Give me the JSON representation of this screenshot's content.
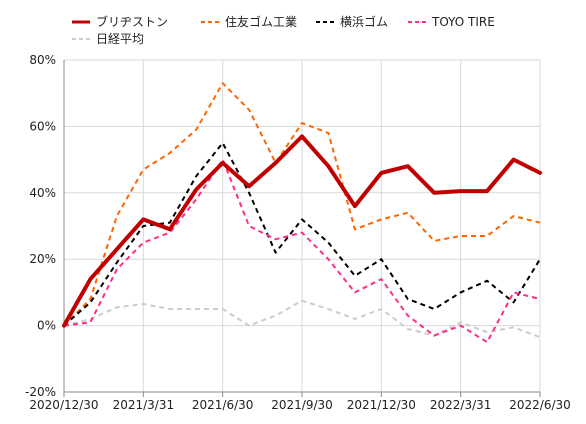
{
  "chart_data": {
    "type": "line",
    "title": "",
    "xlabel": "",
    "ylabel": "",
    "y_unit": "%",
    "ylim": [
      -20,
      80
    ],
    "yticks": [
      -20,
      0,
      20,
      40,
      60,
      80
    ],
    "ytick_labels": [
      "-20%",
      "0%",
      "20%",
      "40%",
      "60%",
      "80%"
    ],
    "xlim": [
      0,
      18
    ],
    "x": [
      0,
      1,
      2,
      3,
      4,
      5,
      6,
      7,
      8,
      9,
      10,
      11,
      12,
      13,
      14,
      15,
      16,
      17,
      18
    ],
    "xtick_positions": [
      0,
      3,
      6,
      9,
      12,
      15,
      18
    ],
    "xtick_labels": [
      "2020/12/30",
      "2021/3/31",
      "2021/6/30",
      "2021/9/30",
      "2021/12/30",
      "2022/3/31",
      "2022/6/30"
    ],
    "grid": true,
    "legend_position": "top",
    "series": [
      {
        "name": "ブリヂストン",
        "color": "#c00000",
        "style": "solid",
        "width": 4,
        "values": [
          0,
          14,
          23,
          32,
          29,
          41,
          49,
          42,
          49,
          57,
          48,
          36,
          46,
          48,
          40,
          40.5,
          40.5,
          50,
          46
        ]
      },
      {
        "name": "住友ゴム工業",
        "color": "#ff6600",
        "style": "dashed",
        "width": 2,
        "values": [
          0,
          8,
          33,
          47,
          52,
          59,
          73,
          65,
          49,
          61,
          58,
          29,
          32,
          34,
          25.5,
          27,
          27,
          33,
          31
        ]
      },
      {
        "name": "横浜ゴム",
        "color": "#000000",
        "style": "dashed",
        "width": 2,
        "values": [
          0,
          7,
          19,
          30,
          31,
          45,
          55,
          40,
          22,
          32,
          25,
          15,
          20,
          8,
          5,
          10,
          13.5,
          7,
          20
        ]
      },
      {
        "name": "TOYO TIRE",
        "color": "#ff2d8a",
        "style": "dashed",
        "width": 2,
        "values": [
          0,
          1,
          17,
          25,
          28,
          38,
          50,
          30,
          26,
          28,
          20,
          10,
          14,
          3,
          -3,
          0,
          -5,
          10,
          8
        ]
      },
      {
        "name": "日経平均",
        "color": "#cccccc",
        "style": "dashed",
        "width": 2,
        "values": [
          0,
          2,
          5.5,
          6.5,
          5,
          5,
          5,
          0,
          3,
          7.5,
          5,
          2,
          5,
          -1,
          -3,
          1,
          -2,
          -0.5,
          -3.5
        ]
      }
    ]
  }
}
